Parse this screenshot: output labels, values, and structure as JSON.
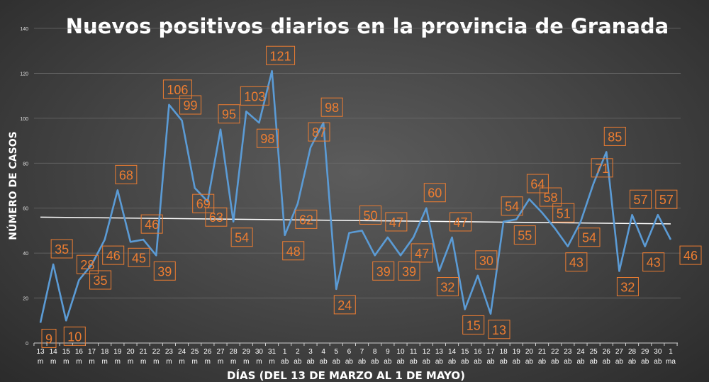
{
  "chart_data": {
    "type": "line",
    "title": "Nuevos positivos diarios en la provincia de Granada",
    "xlabel": "DÍAS (DEL 13 DE MARZO AL 1 DE MAYO)",
    "ylabel": "NÚMERO DE CASOS",
    "ylim": [
      0,
      140
    ],
    "yticks": [
      0,
      20,
      40,
      60,
      80,
      100,
      120,
      140
    ],
    "grid": true,
    "categories": [
      [
        "13",
        "m"
      ],
      [
        "14",
        "m"
      ],
      [
        "15",
        "m"
      ],
      [
        "16",
        "m"
      ],
      [
        "17",
        "m"
      ],
      [
        "18",
        "m"
      ],
      [
        "19",
        "m"
      ],
      [
        "20",
        "m"
      ],
      [
        "21",
        "m"
      ],
      [
        "22",
        "m"
      ],
      [
        "23",
        "m"
      ],
      [
        "24",
        "m"
      ],
      [
        "25",
        "m"
      ],
      [
        "26",
        "m"
      ],
      [
        "27",
        "m"
      ],
      [
        "28",
        "m"
      ],
      [
        "29",
        "m"
      ],
      [
        "30",
        "m"
      ],
      [
        "31",
        "m"
      ],
      [
        "1",
        "ab"
      ],
      [
        "2",
        "ab"
      ],
      [
        "3",
        "ab"
      ],
      [
        "4",
        "ab"
      ],
      [
        "5",
        "ab"
      ],
      [
        "6",
        "ab"
      ],
      [
        "7",
        "ab"
      ],
      [
        "8",
        "ab"
      ],
      [
        "9",
        "ab"
      ],
      [
        "10",
        "ab"
      ],
      [
        "11",
        "ab"
      ],
      [
        "12",
        "ab"
      ],
      [
        "13",
        "ab"
      ],
      [
        "14",
        "ab"
      ],
      [
        "15",
        "ab"
      ],
      [
        "16",
        "ab"
      ],
      [
        "17",
        "ab"
      ],
      [
        "18",
        "ab"
      ],
      [
        "19",
        "ab"
      ],
      [
        "20",
        "ab"
      ],
      [
        "21",
        "ab"
      ],
      [
        "22",
        "ab"
      ],
      [
        "23",
        "ab"
      ],
      [
        "24",
        "ab"
      ],
      [
        "25",
        "ab"
      ],
      [
        "26",
        "ab"
      ],
      [
        "27",
        "ab"
      ],
      [
        "28",
        "ab"
      ],
      [
        "29",
        "ab"
      ],
      [
        "30",
        "ab"
      ],
      [
        "1",
        "ma"
      ]
    ],
    "series": [
      {
        "name": "Nuevos positivos",
        "color": "#5b9bd5",
        "values": [
          9,
          35,
          10,
          28,
          35,
          46,
          68,
          45,
          46,
          39,
          106,
          99,
          69,
          63,
          95,
          54,
          103,
          98,
          121,
          48,
          62,
          87,
          98,
          24,
          49,
          50,
          39,
          47,
          39,
          47,
          60,
          32,
          47,
          15,
          30,
          13,
          54,
          55,
          64,
          58,
          51,
          43,
          54,
          71,
          85,
          32,
          57,
          43,
          57,
          46
        ],
        "labels_shown": [
          true,
          true,
          true,
          true,
          true,
          true,
          true,
          true,
          true,
          true,
          true,
          true,
          true,
          true,
          true,
          true,
          true,
          true,
          true,
          true,
          true,
          true,
          true,
          true,
          false,
          true,
          true,
          true,
          true,
          true,
          true,
          true,
          true,
          true,
          true,
          true,
          true,
          true,
          true,
          true,
          true,
          true,
          true,
          true,
          true,
          true,
          true,
          true,
          true,
          true
        ]
      }
    ],
    "trendline": {
      "type": "linear",
      "color": "#ffffff",
      "start": 56,
      "end": 53
    },
    "label_color": "#ed7d31"
  }
}
